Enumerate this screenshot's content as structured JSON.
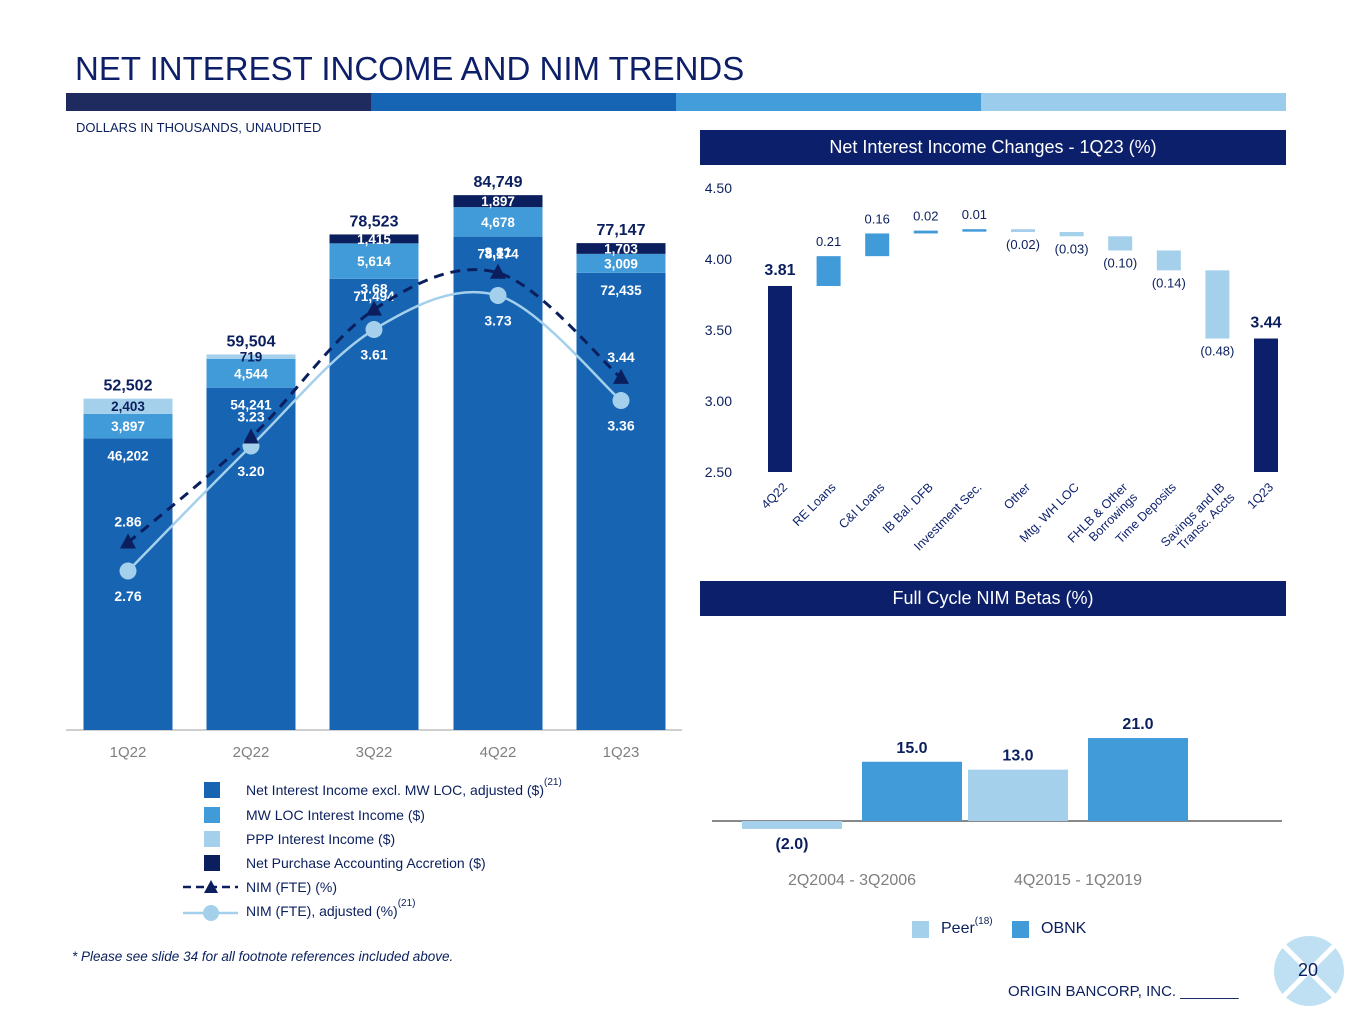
{
  "header": {
    "title": "NET INTEREST INCOME AND NIM TRENDS",
    "subtitle": "DOLLARS IN THOUSANDS, UNAUDITED",
    "stripe_colors": [
      "#1f2a5e",
      "#1665b5",
      "#439ddb",
      "#9ccceb"
    ]
  },
  "colors": {
    "nii_excl": "#1764b3",
    "mw_loc": "#429bd9",
    "ppp": "#a4d0ec",
    "accretion": "#0b1f5e",
    "nim_fte": "#0b1f5e",
    "nim_adj": "#a4d0ec",
    "peer": "#a4d0ec",
    "obnk": "#429bd9",
    "waterfall_end": "#0b1f6b"
  },
  "chart_data": [
    {
      "type": "bar",
      "stacked": true,
      "title": "",
      "categories": [
        "1Q22",
        "2Q22",
        "3Q22",
        "4Q22",
        "1Q23"
      ],
      "series": [
        {
          "name": "Net Interest Income excl. MW LOC, adjusted ($)",
          "footnote": "(21)",
          "values": [
            46202,
            54241,
            71494,
            78174,
            72435
          ],
          "labels": [
            "46,202",
            "54,241",
            "71,494",
            "78,174",
            "72,435"
          ]
        },
        {
          "name": "MW LOC Interest Income ($)",
          "values": [
            3897,
            4544,
            5614,
            4678,
            3009
          ],
          "labels": [
            "3,897",
            "4,544",
            "5,614",
            "4,678",
            "3,009"
          ]
        },
        {
          "name": "PPP Interest Income ($)",
          "values": [
            2403,
            719,
            0,
            0,
            0
          ],
          "labels": [
            "2,403",
            "719",
            "",
            "",
            ""
          ]
        },
        {
          "name": "Net Purchase Accounting Accretion ($)",
          "values": [
            0,
            0,
            1415,
            1897,
            1703
          ],
          "labels": [
            "",
            "",
            "1,415",
            "1,897",
            "1,703"
          ]
        }
      ],
      "totals": [
        52502,
        59504,
        78523,
        84749,
        77147
      ],
      "total_labels": [
        "52,502",
        "59,504",
        "78,523",
        "84,749",
        "77,147"
      ],
      "lines": [
        {
          "name": "NIM (FTE) (%)",
          "values": [
            2.86,
            3.23,
            3.68,
            3.81,
            3.44
          ],
          "labels": [
            "2.86",
            "3.23",
            "3.68",
            "3.81",
            "3.44"
          ],
          "style": "dashed",
          "marker": "triangle"
        },
        {
          "name": "NIM (FTE), adjusted (%)",
          "footnote": "(21)",
          "values": [
            2.76,
            3.2,
            3.61,
            3.73,
            3.36
          ],
          "labels": [
            "2.76",
            "3.20",
            "3.61",
            "3.73",
            "3.36"
          ],
          "style": "solid",
          "marker": "circle"
        }
      ],
      "ylim": [
        0,
        90000
      ],
      "nim_axis": [
        2.2,
        4.2
      ]
    },
    {
      "type": "waterfall",
      "title": "Net Interest Income Changes - 1Q23 (%)",
      "categories": [
        "4Q22",
        "RE Loans",
        "C&I Loans",
        "IB Bal. DFB",
        "Investment Sec.",
        "Other",
        "Mtg. WH LOC",
        "FHLB & Other Borrowings",
        "Time Deposits",
        "Savings and IB Transc. Accts",
        "1Q23"
      ],
      "category_lines": [
        [
          "4Q22"
        ],
        [
          "RE Loans"
        ],
        [
          "C&I Loans"
        ],
        [
          "IB Bal. DFB"
        ],
        [
          "Investment Sec."
        ],
        [
          "Other"
        ],
        [
          "Mtg. WH LOC"
        ],
        [
          "FHLB & Other",
          "Borrowings"
        ],
        [
          "Time Deposits"
        ],
        [
          "Savings and IB",
          "Transc. Accts"
        ],
        [
          "1Q23"
        ]
      ],
      "values": [
        3.81,
        0.21,
        0.16,
        0.02,
        0.01,
        -0.02,
        -0.03,
        -0.1,
        -0.14,
        -0.48,
        3.44
      ],
      "labels": [
        "3.81",
        "0.21",
        "0.16",
        "0.02",
        "0.01",
        "(0.02)",
        "(0.03)",
        "(0.10)",
        "(0.14)",
        "(0.48)",
        "3.44"
      ],
      "is_total": [
        true,
        false,
        false,
        false,
        false,
        false,
        false,
        false,
        false,
        false,
        true
      ],
      "ylim": [
        2.5,
        4.5
      ],
      "yticks": [
        "2.50",
        "3.00",
        "3.50",
        "4.00",
        "4.50"
      ]
    },
    {
      "type": "bar",
      "title": "Full Cycle NIM Betas (%)",
      "categories": [
        "2Q2004 - 3Q2006",
        "4Q2015 - 1Q2019"
      ],
      "series": [
        {
          "name": "Peer",
          "footnote": "(18)",
          "values": [
            -2.0,
            13.0
          ],
          "labels": [
            "(2.0)",
            "13.0"
          ]
        },
        {
          "name": "OBNK",
          "values": [
            15.0,
            21.0
          ],
          "labels": [
            "15.0",
            "21.0"
          ]
        }
      ],
      "ylim": [
        -5,
        25
      ]
    }
  ],
  "legend": {
    "nii_excl": "Net Interest Income excl. MW LOC, adjusted ($)",
    "nii_excl_note": "(21)",
    "mw_loc": "MW LOC Interest Income ($)",
    "ppp": "PPP Interest Income ($)",
    "accretion": "Net Purchase Accounting Accretion ($)",
    "nim_fte": "NIM (FTE) (%)",
    "nim_adj": "NIM (FTE), adjusted (%)",
    "nim_adj_note": "(21)"
  },
  "beta_legend": {
    "peer": "Peer",
    "peer_note": "(18)",
    "obnk": "OBNK"
  },
  "footer": {
    "footnote": "* Please see slide 34 for all footnote references included above.",
    "company": "ORIGIN BANCORP, INC. _______",
    "page": "20"
  }
}
